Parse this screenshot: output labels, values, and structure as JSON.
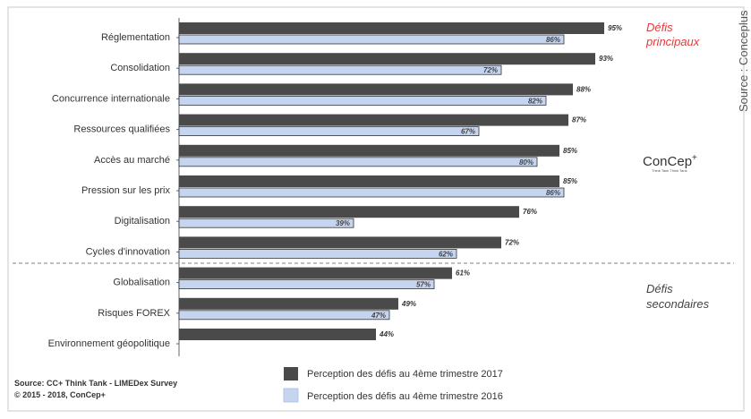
{
  "chart_data": {
    "type": "bar",
    "orientation": "horizontal",
    "categories": [
      "Réglementation",
      "Consolidation",
      "Concurrence internationale",
      "Ressources qualifiées",
      "Accès au marché",
      "Pression sur les prix",
      "Digitalisation",
      "Cycles d'innovation",
      "Globalisation",
      "Risques FOREX",
      "Environnement géopolitique"
    ],
    "series": [
      {
        "name": "Perception des défis au 4ème trimestre 2017",
        "color": "#4a4a4a",
        "values": [
          95,
          93,
          88,
          87,
          85,
          85,
          76,
          72,
          61,
          49,
          44
        ],
        "labels": [
          "95%",
          "93%",
          "88%",
          "87%",
          "85%",
          "85%",
          "76%",
          "72%",
          "61%",
          "49%",
          "44%"
        ]
      },
      {
        "name": "Perception des défis au 4ème trimestre 2016",
        "color": "#c5d5f0",
        "values": [
          86,
          72,
          82,
          67,
          80,
          86,
          39,
          62,
          57,
          47,
          null
        ],
        "labels": [
          "86%",
          "72%",
          "82%",
          "67%",
          "80%",
          "86%",
          "39%",
          "62%",
          "57%",
          "47%",
          ""
        ]
      }
    ],
    "xlim": [
      0,
      100
    ],
    "legend_position": "bottom-center",
    "group_annotations": [
      "Défis principaux",
      "Défis secondaires"
    ],
    "secondary_group_start_index": 8
  },
  "annotations": {
    "primary_line1": "Défis",
    "primary_line2": "principaux",
    "secondary_line1": "Défis",
    "secondary_line2": "secondaires"
  },
  "brand": {
    "name": "ConCep",
    "mark": "+",
    "tagline": "Think Tank Think Tank"
  },
  "legend": {
    "item_2017": "Perception des défis au 4ème trimestre 2017",
    "item_2016": "Perception des défis au 4ème trimestre 2016"
  },
  "source": {
    "line1": "Source: CC+ Think Tank - LIMEDex Survey",
    "line2": "© 2015 - 2018, ConCep+"
  },
  "side_source": "Source : Conceplus",
  "colors": {
    "dark_bar": "#4a4a4a",
    "light_bar": "#c5d5f0",
    "accent_red": "#e23b3b"
  }
}
